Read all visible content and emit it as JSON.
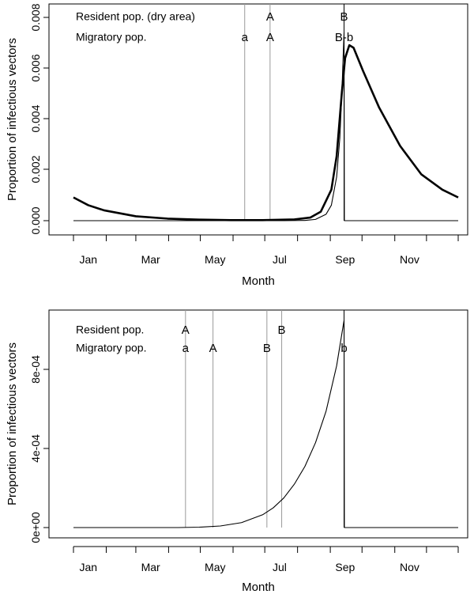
{
  "chart_data": [
    {
      "type": "line",
      "xlabel": "Month",
      "ylabel": "Proportion of infectious vectors",
      "x_unit": "day of year",
      "xticks": [
        "Jan",
        "Mar",
        "May",
        "Jul",
        "Sep",
        "Nov"
      ],
      "yticks": [
        "0.000",
        "0.002",
        "0.004",
        "0.006",
        "0.008"
      ],
      "ylim": [
        0,
        0.008
      ],
      "grid": false,
      "legend": {
        "rows": [
          "Resident pop. (dry area)",
          "Migratory pop."
        ]
      },
      "vlines": [
        {
          "day": 163,
          "row": 2,
          "label": "a",
          "color": "#999999"
        },
        {
          "day": 187,
          "row": 1,
          "label": "A",
          "color": "#999999"
        },
        {
          "day": 187,
          "row": 2,
          "label": "A",
          "color": "#999999"
        },
        {
          "day": 257,
          "row": 1,
          "label": "B",
          "color": "#000000"
        },
        {
          "day": 257,
          "row": 2,
          "label": "B-b",
          "color": "#000000"
        }
      ],
      "series": [
        {
          "style": "thick",
          "color": "#000000",
          "x": [
            1,
            15,
            30,
            60,
            90,
            120,
            150,
            180,
            210,
            225,
            235,
            245,
            250,
            255,
            258,
            262,
            266,
            275,
            290,
            310,
            330,
            350,
            365
          ],
          "y": [
            0.0009,
            0.0006,
            0.0004,
            0.00017,
            8e-05,
            4e-05,
            2e-05,
            2e-05,
            5e-05,
            0.00012,
            0.00035,
            0.0012,
            0.0025,
            0.005,
            0.0063,
            0.0068,
            0.0067,
            0.0058,
            0.0044,
            0.0029,
            0.0018,
            0.0012,
            0.0009
          ]
        },
        {
          "style": "thin",
          "color": "#000000",
          "x": [
            1,
            200,
            220,
            230,
            240,
            245,
            250,
            253,
            255,
            256,
            257,
            257.3,
            262,
            365
          ],
          "y": [
            0,
            0,
            1e-05,
            5e-05,
            0.00025,
            0.0006,
            0.0017,
            0.0032,
            0.005,
            0.0062,
            0.0073,
            0,
            0,
            0
          ]
        }
      ]
    },
    {
      "type": "line",
      "xlabel": "Month",
      "ylabel": "Proportion of infectious vectors",
      "x_unit": "day of year",
      "xticks": [
        "Jan",
        "Mar",
        "May",
        "Jul",
        "Sep",
        "Nov"
      ],
      "yticks": [
        "0e+00",
        "4e-04",
        "8e-04"
      ],
      "ylim": [
        0,
        0.00105
      ],
      "grid": false,
      "legend": {
        "rows": [
          "Resident pop.",
          "Migratory pop."
        ]
      },
      "vlines": [
        {
          "day": 107,
          "row": 1,
          "label": "A",
          "color": "#999999"
        },
        {
          "day": 107,
          "row": 2,
          "label": "a",
          "color": "#999999"
        },
        {
          "day": 133,
          "row": 2,
          "label": "A",
          "color": "#999999"
        },
        {
          "day": 184,
          "row": 2,
          "label": "B",
          "color": "#999999"
        },
        {
          "day": 198,
          "row": 1,
          "label": "B",
          "color": "#999999"
        },
        {
          "day": 257,
          "row": 2,
          "label": "b",
          "color": "#000000"
        }
      ],
      "series": [
        {
          "style": "thin",
          "color": "#000000",
          "x": [
            1,
            100,
            120,
            140,
            160,
            180,
            190,
            200,
            210,
            220,
            230,
            240,
            250,
            257,
            257.3,
            365
          ],
          "y": [
            0,
            0,
            2e-06,
            8e-06,
            2.5e-05,
            6.5e-05,
            0.0001,
            0.00015,
            0.00022,
            0.00031,
            0.00043,
            0.00059,
            0.00082,
            0.00105,
            0,
            0
          ]
        }
      ]
    }
  ]
}
